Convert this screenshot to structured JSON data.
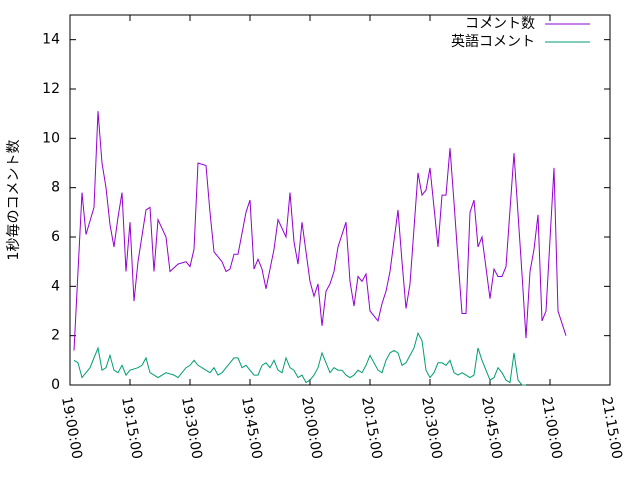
{
  "chart_data": {
    "type": "line",
    "ylabel": "1秒毎のコメント数",
    "xlim": [
      "19:00:00",
      "21:15:00"
    ],
    "xticks": [
      "19:00:00",
      "19:15:00",
      "19:30:00",
      "19:45:00",
      "20:00:00",
      "20:15:00",
      "20:30:00",
      "20:45:00",
      "21:00:00",
      "21:15:00"
    ],
    "ylim": [
      0,
      15
    ],
    "yticks": [
      0,
      2,
      4,
      6,
      8,
      10,
      12,
      14
    ],
    "grid": false,
    "legend": "top-right",
    "series": [
      {
        "name": "コメント数",
        "color": "#9400d3",
        "x": [
          "19:01:00",
          "19:03:00",
          "19:04:00",
          "19:06:00",
          "19:07:00",
          "19:08:00",
          "19:09:00",
          "19:10:00",
          "19:11:00",
          "19:12:00",
          "19:13:00",
          "19:14:00",
          "19:15:00",
          "19:16:00",
          "19:17:00",
          "19:19:00",
          "19:20:00",
          "19:21:00",
          "19:22:00",
          "19:24:00",
          "19:25:00",
          "19:27:00",
          "19:29:00",
          "19:30:00",
          "19:31:00",
          "19:32:00",
          "19:34:00",
          "19:35:00",
          "19:36:00",
          "19:38:00",
          "19:39:00",
          "19:40:00",
          "19:41:00",
          "19:42:00",
          "19:44:00",
          "19:45:00",
          "19:46:00",
          "19:47:00",
          "19:48:00",
          "19:49:00",
          "19:51:00",
          "19:52:00",
          "19:54:00",
          "19:55:00",
          "19:56:00",
          "19:57:00",
          "19:58:00",
          "20:00:00",
          "20:01:00",
          "20:02:00",
          "20:03:00",
          "20:04:00",
          "20:05:00",
          "20:06:00",
          "20:07:00",
          "20:09:00",
          "20:10:00",
          "20:11:00",
          "20:12:00",
          "20:13:00",
          "20:14:00",
          "20:15:00",
          "20:17:00",
          "20:18:00",
          "20:19:00",
          "20:20:00",
          "20:22:00",
          "20:23:00",
          "20:24:00",
          "20:25:00",
          "20:27:00",
          "20:28:00",
          "20:29:00",
          "20:30:00",
          "20:32:00",
          "20:33:00",
          "20:34:00",
          "20:35:00",
          "20:36:00",
          "20:37:00",
          "20:38:00",
          "20:39:00",
          "20:40:00",
          "20:41:00",
          "20:42:00",
          "20:43:00",
          "20:45:00",
          "20:46:00",
          "20:47:00",
          "20:48:00",
          "20:49:00",
          "20:51:00",
          "20:53:00",
          "20:54:00",
          "20:55:00",
          "20:56:00",
          "20:57:00",
          "20:58:00",
          "20:59:00",
          "21:01:00",
          "21:02:00",
          "21:04:00"
        ],
        "values": [
          1.4,
          7.8,
          6.1,
          7.2,
          11.1,
          9.0,
          8.0,
          6.5,
          5.6,
          6.8,
          7.8,
          4.6,
          6.6,
          3.4,
          5.0,
          7.1,
          7.2,
          4.6,
          6.7,
          6.0,
          4.6,
          4.9,
          5.0,
          4.8,
          5.5,
          9.0,
          8.9,
          7.0,
          5.4,
          5.0,
          4.6,
          4.7,
          5.3,
          5.3,
          7.0,
          7.5,
          4.7,
          5.1,
          4.7,
          3.9,
          5.5,
          6.7,
          6.0,
          7.8,
          5.8,
          4.9,
          6.6,
          4.2,
          3.6,
          4.1,
          2.4,
          3.8,
          4.1,
          4.6,
          5.6,
          6.6,
          4.2,
          3.2,
          4.4,
          4.2,
          4.5,
          3.0,
          2.6,
          3.3,
          3.8,
          4.6,
          7.1,
          5.0,
          3.1,
          4.1,
          8.6,
          7.7,
          7.9,
          8.8,
          5.6,
          7.7,
          7.7,
          9.6,
          7.4,
          5.1,
          2.9,
          2.9,
          7.0,
          7.5,
          5.6,
          6.0,
          3.5,
          4.7,
          4.4,
          4.4,
          4.8,
          9.4,
          4.5,
          1.9,
          4.6,
          5.5,
          6.9,
          2.6,
          3.0,
          8.8,
          3.0,
          2.0
        ]
      },
      {
        "name": "英語コメント",
        "color": "#009e73",
        "x": [
          "19:01:00",
          "19:02:00",
          "19:03:00",
          "19:04:00",
          "19:05:00",
          "19:07:00",
          "19:08:00",
          "19:09:00",
          "19:10:00",
          "19:11:00",
          "19:12:00",
          "19:13:00",
          "19:14:00",
          "19:15:00",
          "19:17:00",
          "19:18:00",
          "19:19:00",
          "19:20:00",
          "19:21:00",
          "19:22:00",
          "19:24:00",
          "19:26:00",
          "19:27:00",
          "19:29:00",
          "19:30:00",
          "19:31:00",
          "19:32:00",
          "19:34:00",
          "19:35:00",
          "19:36:00",
          "19:37:00",
          "19:38:00",
          "19:40:00",
          "19:41:00",
          "19:42:00",
          "19:43:00",
          "19:44:00",
          "19:46:00",
          "19:47:00",
          "19:48:00",
          "19:49:00",
          "19:50:00",
          "19:51:00",
          "19:52:00",
          "19:53:00",
          "19:54:00",
          "19:55:00",
          "19:56:00",
          "19:57:00",
          "19:58:00",
          "19:59:00",
          "20:00:00",
          "20:01:00",
          "20:02:00",
          "20:03:00",
          "20:04:00",
          "20:05:00",
          "20:06:00",
          "20:07:00",
          "20:08:00",
          "20:09:00",
          "20:10:00",
          "20:11:00",
          "20:12:00",
          "20:13:00",
          "20:14:00",
          "20:15:00",
          "20:16:00",
          "20:17:00",
          "20:18:00",
          "20:19:00",
          "20:20:00",
          "20:21:00",
          "20:22:00",
          "20:23:00",
          "20:24:00",
          "20:25:00",
          "20:26:00",
          "20:27:00",
          "20:28:00",
          "20:29:00",
          "20:30:00",
          "20:31:00",
          "20:32:00",
          "20:33:00",
          "20:34:00",
          "20:35:00",
          "20:36:00",
          "20:37:00",
          "20:38:00",
          "20:39:00",
          "20:40:00",
          "20:41:00",
          "20:42:00",
          "20:43:00",
          "20:44:00",
          "20:45:00",
          "20:46:00",
          "20:47:00",
          "20:48:00",
          "20:49:00",
          "20:50:00",
          "20:51:00",
          "20:52:00",
          "20:53:00",
          "20:54:00"
        ],
        "values": [
          1.0,
          0.9,
          0.3,
          0.5,
          0.7,
          1.5,
          0.6,
          0.7,
          1.2,
          0.6,
          0.5,
          0.8,
          0.4,
          0.6,
          0.7,
          0.8,
          1.1,
          0.5,
          0.4,
          0.3,
          0.5,
          0.4,
          0.3,
          0.7,
          0.8,
          1.0,
          0.8,
          0.6,
          0.5,
          0.7,
          0.4,
          0.5,
          0.9,
          1.1,
          1.1,
          0.7,
          0.8,
          0.4,
          0.4,
          0.8,
          0.9,
          0.7,
          1.0,
          0.6,
          0.5,
          1.1,
          0.7,
          0.6,
          0.3,
          0.4,
          0.1,
          0.2,
          0.4,
          0.7,
          1.3,
          0.9,
          0.5,
          0.7,
          0.6,
          0.6,
          0.4,
          0.3,
          0.4,
          0.6,
          0.5,
          0.8,
          1.2,
          0.9,
          0.6,
          0.5,
          1.0,
          1.3,
          1.4,
          1.3,
          0.8,
          0.9,
          1.2,
          1.5,
          2.1,
          1.8,
          0.6,
          0.3,
          0.5,
          0.9,
          0.9,
          0.8,
          1.0,
          0.5,
          0.4,
          0.5,
          0.4,
          0.3,
          0.4,
          1.5,
          1.0,
          0.6,
          0.2,
          0.3,
          0.7,
          0.5,
          0.2,
          0.1,
          1.3,
          0.2,
          0.0,
          0.0
        ]
      }
    ]
  }
}
